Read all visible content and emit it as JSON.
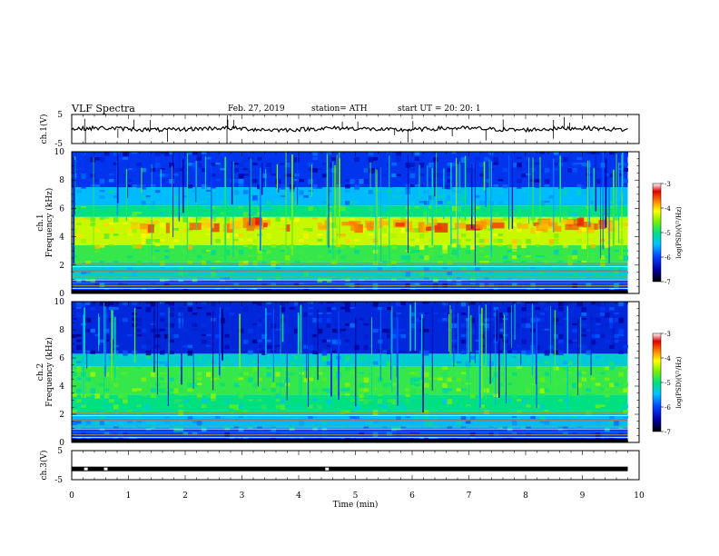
{
  "header": {
    "title": "VLF  Spectra",
    "date": "Feb. 27, 2019",
    "station": "station= ATH",
    "start": "start  UT  =    20: 20: 1"
  },
  "chart_data": [
    {
      "type": "line",
      "panel": "ch1-time-series",
      "ylabel": "ch.1(V)",
      "ylim": [
        -5,
        5
      ],
      "yticks": [
        "5",
        "-5"
      ],
      "xlim": [
        0,
        10
      ],
      "approx_level": 0
    },
    {
      "type": "heatmap",
      "panel": "ch1-spectrogram",
      "ylabel_top": "ch.1",
      "ylabel": "Frequency  (kHz)",
      "ylim": [
        0,
        10
      ],
      "yticks": [
        "0",
        "2",
        "4",
        "6",
        "8",
        "10"
      ],
      "xlim": [
        0,
        9.8
      ],
      "colorbar": {
        "label": "log(PSD)(V²/Hz)",
        "ticks": [
          "-3",
          "-4",
          "-5",
          "-6",
          "-7"
        ],
        "range": [
          -7,
          -3
        ]
      },
      "bands": [
        {
          "f_low": 0,
          "f_high": 1.0,
          "level": -6.0
        },
        {
          "f_low": 1.0,
          "f_high": 2.2,
          "level": -5.3
        },
        {
          "f_low": 2.2,
          "f_high": 3.4,
          "level": -4.8
        },
        {
          "f_low": 3.4,
          "f_high": 5.4,
          "level": -4.3
        },
        {
          "f_low": 5.4,
          "f_high": 6.2,
          "level": -5.0
        },
        {
          "f_low": 6.2,
          "f_high": 7.5,
          "level": -5.5
        },
        {
          "f_low": 7.5,
          "f_high": 10.0,
          "level": -6.1
        }
      ],
      "peak_band": {
        "f_center": 4.8,
        "level": -3.8
      }
    },
    {
      "type": "heatmap",
      "panel": "ch2-spectrogram",
      "ylabel_top": "ch.2",
      "ylabel": "Frequency  (kHz)",
      "ylim": [
        0,
        10
      ],
      "yticks": [
        "0",
        "2",
        "4",
        "6",
        "8",
        "10"
      ],
      "xlim": [
        0,
        9.8
      ],
      "colorbar": {
        "label": "log(PSD)(V²/Hz)",
        "ticks": [
          "-3",
          "-4",
          "-5",
          "-6",
          "-7"
        ],
        "range": [
          -7,
          -3
        ]
      },
      "bands": [
        {
          "f_low": 0,
          "f_high": 1.0,
          "level": -6.0
        },
        {
          "f_low": 1.0,
          "f_high": 2.2,
          "level": -5.5
        },
        {
          "f_low": 2.2,
          "f_high": 3.4,
          "level": -5.0
        },
        {
          "f_low": 3.4,
          "f_high": 5.4,
          "level": -4.8
        },
        {
          "f_low": 5.4,
          "f_high": 6.3,
          "level": -5.3
        },
        {
          "f_low": 6.3,
          "f_high": 10.0,
          "level": -6.2
        }
      ]
    },
    {
      "type": "line",
      "panel": "ch3-time-series",
      "ylabel": "ch.3(V)",
      "ylim": [
        -5,
        5
      ],
      "yticks": [
        "5",
        "-5"
      ],
      "xlim": [
        0,
        10
      ],
      "approx_level": -1.3,
      "xlabel": "Time  (min)",
      "xticks": [
        "0",
        "1",
        "2",
        "3",
        "4",
        "5",
        "6",
        "7",
        "8",
        "9",
        "10"
      ]
    }
  ]
}
